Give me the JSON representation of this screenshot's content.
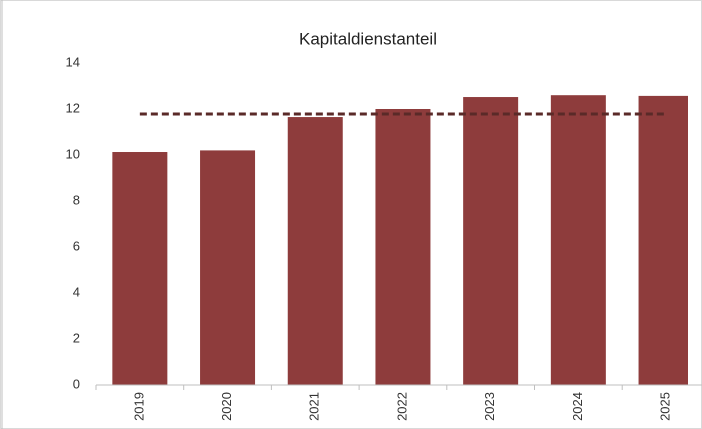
{
  "chart_data": {
    "type": "bar",
    "title": "Kapitaldienstanteil",
    "categories": [
      "2019",
      "2020",
      "2021",
      "2022",
      "2023",
      "2024",
      "2025"
    ],
    "series": [
      {
        "type": "bar",
        "color": "#8e3c3c",
        "values": [
          10.13,
          10.2,
          11.65,
          12.0,
          12.52,
          12.6,
          12.57
        ]
      },
      {
        "type": "line",
        "color": "#5a2a28",
        "dashed": true,
        "values": [
          11.78,
          11.78,
          11.78,
          11.78,
          11.78,
          11.78,
          11.78
        ]
      }
    ],
    "ylim": [
      0,
      14
    ],
    "yticks": [
      0,
      2,
      4,
      6,
      8,
      10,
      12,
      14
    ],
    "grid": false
  }
}
